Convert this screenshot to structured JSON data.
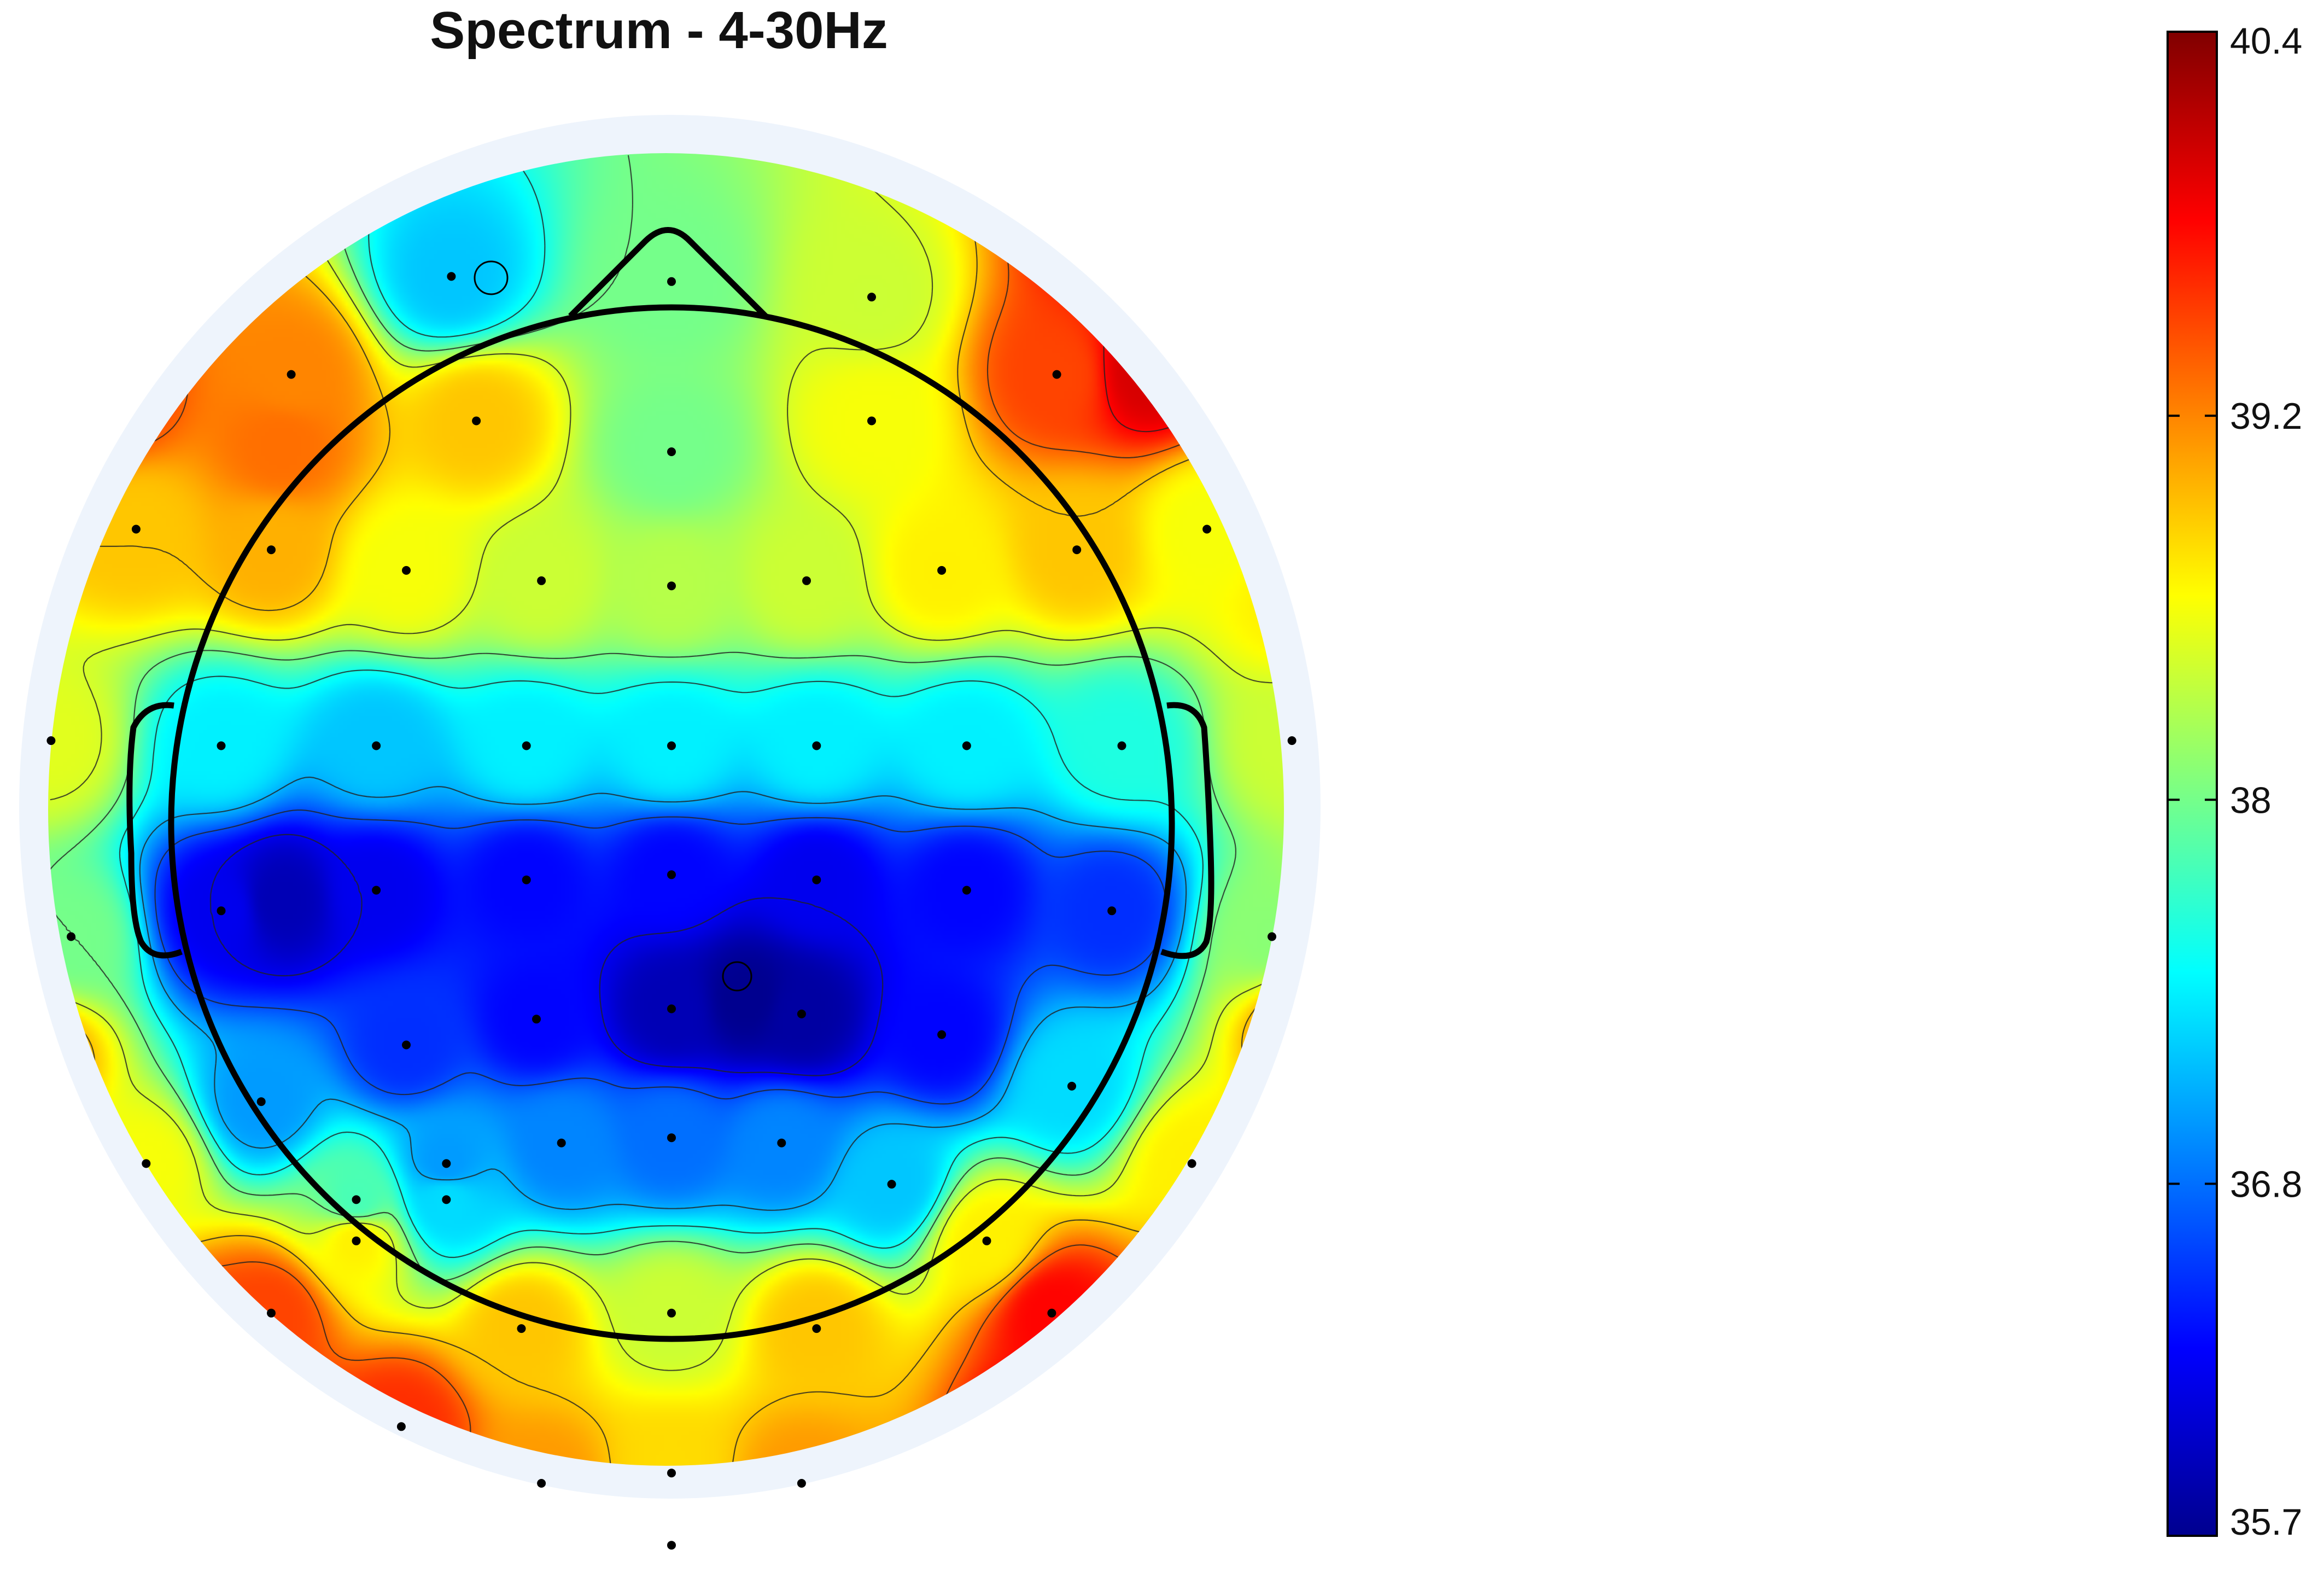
{
  "chart_data": {
    "type": "heatmap",
    "subtype": "eeg-topographic-map",
    "title": "Spectrum - 4-30Hz",
    "colormap": "jet",
    "colorbar": {
      "min": 35.7,
      "max": 40.4,
      "ticks": [
        40.4,
        39.2,
        38,
        36.8,
        35.7
      ],
      "tick_labels": [
        "40.4",
        "39.2",
        "38",
        "36.8",
        "35.7"
      ],
      "placement": "right"
    },
    "contour_lines": true,
    "head_outline": {
      "nose": true,
      "ears": true
    },
    "electrodes": [
      {
        "x": -0.44,
        "y": 1.06,
        "v": 37.2
      },
      {
        "x": 0.0,
        "y": 1.05,
        "v": 38.0
      },
      {
        "x": 0.4,
        "y": 1.02,
        "v": 38.4
      },
      {
        "x": -0.76,
        "y": 0.87,
        "v": 39.2
      },
      {
        "x": -0.39,
        "y": 0.78,
        "v": 38.9
      },
      {
        "x": 0.0,
        "y": 0.72,
        "v": 38.0
      },
      {
        "x": 0.4,
        "y": 0.78,
        "v": 38.6
      },
      {
        "x": 0.77,
        "y": 0.87,
        "v": 39.5
      },
      {
        "x": -1.07,
        "y": 0.57,
        "v": 38.9
      },
      {
        "x": -0.8,
        "y": 0.53,
        "v": 39.0
      },
      {
        "x": -0.53,
        "y": 0.49,
        "v": 38.6
      },
      {
        "x": -0.26,
        "y": 0.47,
        "v": 38.4
      },
      {
        "x": 0.0,
        "y": 0.46,
        "v": 38.3
      },
      {
        "x": 0.27,
        "y": 0.47,
        "v": 38.4
      },
      {
        "x": 0.54,
        "y": 0.49,
        "v": 38.7
      },
      {
        "x": 0.81,
        "y": 0.53,
        "v": 38.9
      },
      {
        "x": 1.07,
        "y": 0.57,
        "v": 38.6
      },
      {
        "x": -1.24,
        "y": 0.16,
        "v": 38.5
      },
      {
        "x": -0.9,
        "y": 0.15,
        "v": 37.4
      },
      {
        "x": -0.59,
        "y": 0.15,
        "v": 37.2
      },
      {
        "x": -0.29,
        "y": 0.15,
        "v": 37.4
      },
      {
        "x": 0.0,
        "y": 0.15,
        "v": 37.4
      },
      {
        "x": 0.29,
        "y": 0.15,
        "v": 37.4
      },
      {
        "x": 0.59,
        "y": 0.15,
        "v": 37.4
      },
      {
        "x": 0.9,
        "y": 0.15,
        "v": 37.6
      },
      {
        "x": 1.24,
        "y": 0.16,
        "v": 38.4
      },
      {
        "x": -1.2,
        "y": -0.22,
        "v": 38.0
      },
      {
        "x": -0.9,
        "y": -0.17,
        "v": 36.2
      },
      {
        "x": -0.59,
        "y": -0.13,
        "v": 36.2
      },
      {
        "x": -0.29,
        "y": -0.11,
        "v": 36.3
      },
      {
        "x": 0.0,
        "y": -0.1,
        "v": 36.3
      },
      {
        "x": 0.29,
        "y": -0.11,
        "v": 36.2
      },
      {
        "x": 0.59,
        "y": -0.13,
        "v": 36.3
      },
      {
        "x": 0.88,
        "y": -0.17,
        "v": 36.5
      },
      {
        "x": 1.2,
        "y": -0.22,
        "v": 38.1
      },
      {
        "x": -0.53,
        "y": -0.43,
        "v": 36.5
      },
      {
        "x": -0.27,
        "y": -0.38,
        "v": 36.3
      },
      {
        "x": 0.0,
        "y": -0.36,
        "v": 35.9
      },
      {
        "x": 0.26,
        "y": -0.37,
        "v": 35.8
      },
      {
        "x": 0.54,
        "y": -0.41,
        "v": 36.3
      },
      {
        "x": -0.82,
        "y": -0.54,
        "v": 37.0
      },
      {
        "x": 0.8,
        "y": -0.51,
        "v": 37.3
      },
      {
        "x": -1.05,
        "y": -0.66,
        "v": 38.6
      },
      {
        "x": -0.45,
        "y": -0.66,
        "v": 37.0
      },
      {
        "x": -0.22,
        "y": -0.62,
        "v": 36.9
      },
      {
        "x": 0.0,
        "y": -0.61,
        "v": 36.8
      },
      {
        "x": 0.22,
        "y": -0.62,
        "v": 36.9
      },
      {
        "x": 1.04,
        "y": -0.66,
        "v": 38.7
      },
      {
        "x": -0.45,
        "y": -0.73,
        "v": 37.3
      },
      {
        "x": -0.63,
        "y": -0.73,
        "v": 37.8
      },
      {
        "x": 0.44,
        "y": -0.7,
        "v": 37.2
      },
      {
        "x": -0.63,
        "y": -0.81,
        "v": 38.7
      },
      {
        "x": 0.63,
        "y": -0.81,
        "v": 38.7
      },
      {
        "x": -0.8,
        "y": -0.95,
        "v": 39.5
      },
      {
        "x": -0.3,
        "y": -0.98,
        "v": 38.9
      },
      {
        "x": 0.0,
        "y": -0.95,
        "v": 38.4
      },
      {
        "x": 0.29,
        "y": -0.98,
        "v": 38.9
      },
      {
        "x": 0.76,
        "y": -0.95,
        "v": 39.8
      },
      {
        "x": -0.54,
        "y": -1.17,
        "v": 39.6
      },
      {
        "x": -0.26,
        "y": -1.28,
        "v": 39.1
      },
      {
        "x": 0.0,
        "y": -1.26,
        "v": 38.8
      },
      {
        "x": 0.26,
        "y": -1.28,
        "v": 39.1
      },
      {
        "x": 0.0,
        "y": -1.48,
        "v": 38.9
      },
      {
        "x": 0.0,
        "y": -1.4,
        "v": 39.0
      }
    ],
    "extra_influence": [
      {
        "x": -0.78,
        "y": 0.73,
        "v": 39.3
      },
      {
        "x": -1.12,
        "y": 0.83,
        "v": 39.5
      },
      {
        "x": 0.95,
        "y": 0.88,
        "v": 40.0
      },
      {
        "x": 0.93,
        "y": 1.17,
        "v": 40.1
      },
      {
        "x": 1.25,
        "y": 0.43,
        "v": 38.7
      },
      {
        "x": -1.28,
        "y": -0.45,
        "v": 39.1
      },
      {
        "x": 1.3,
        "y": -0.35,
        "v": 39.6
      },
      {
        "x": 1.2,
        "y": -0.85,
        "v": 40.1
      },
      {
        "x": 0.78,
        "y": -1.2,
        "v": 40.3
      },
      {
        "x": -0.78,
        "y": -1.25,
        "v": 40.2
      },
      {
        "x": -0.95,
        "y": -1.05,
        "v": 40.0
      },
      {
        "x": -0.78,
        "y": -0.15,
        "v": 35.9
      },
      {
        "x": 0.15,
        "y": -0.34,
        "v": 35.7
      }
    ]
  }
}
